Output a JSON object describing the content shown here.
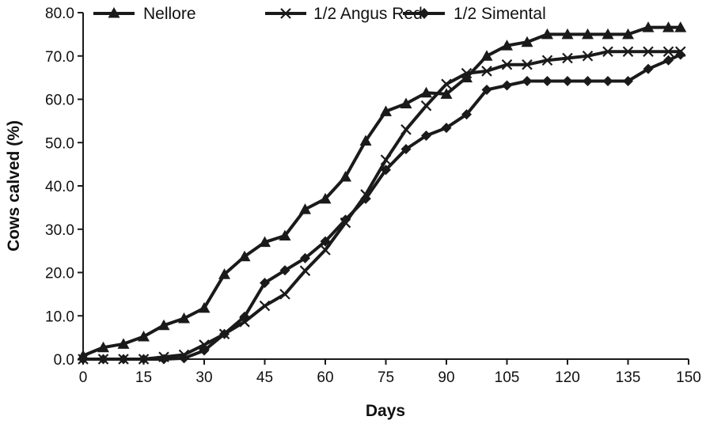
{
  "chart_data": {
    "type": "line",
    "xlabel": "Days",
    "ylabel": "Cows calved (%)",
    "xlim": [
      0,
      150
    ],
    "ylim": [
      0,
      80
    ],
    "x_ticks": [
      "0",
      "15",
      "30",
      "45",
      "60",
      "75",
      "90",
      "105",
      "120",
      "135",
      "150"
    ],
    "y_ticks": [
      "0.0",
      "10.0",
      "20.0",
      "30.0",
      "40.0",
      "50.0",
      "60.0",
      "70.0",
      "80.0"
    ],
    "grid": false,
    "legend_position": "top-left",
    "series": [
      {
        "name": "Nellore",
        "marker": "triangle",
        "color": "#1a1a1a",
        "x": [
          0,
          5,
          10,
          15,
          20,
          25,
          30,
          35,
          40,
          45,
          50,
          55,
          60,
          65,
          70,
          75,
          80,
          85,
          90,
          95,
          100,
          105,
          110,
          115,
          120,
          125,
          130,
          135,
          140,
          145,
          148
        ],
        "y": [
          0.8,
          2.7,
          3.5,
          5.2,
          7.8,
          9.4,
          11.8,
          19.6,
          23.7,
          27.0,
          28.5,
          34.6,
          37.0,
          42.1,
          50.4,
          57.2,
          59.0,
          61.5,
          61.2,
          65.0,
          70.0,
          72.4,
          73.2,
          75.0,
          75.0,
          75.0,
          75.0,
          75.0,
          76.6,
          76.6,
          76.6
        ]
      },
      {
        "name": "1/2 Angus Red",
        "marker": "x",
        "color": "#1a1a1a",
        "x": [
          0,
          5,
          10,
          15,
          20,
          25,
          30,
          35,
          40,
          45,
          50,
          55,
          60,
          65,
          70,
          75,
          80,
          85,
          90,
          95,
          100,
          105,
          110,
          115,
          120,
          125,
          130,
          135,
          140,
          145,
          148
        ],
        "y": [
          0.0,
          0.0,
          0.0,
          0.0,
          0.5,
          1.0,
          3.3,
          5.8,
          8.6,
          12.3,
          15.0,
          20.4,
          25.2,
          31.5,
          38.0,
          46.0,
          53.0,
          58.5,
          63.5,
          66.0,
          66.5,
          68.0,
          68.0,
          69.0,
          69.5,
          70.0,
          71.0,
          71.0,
          71.0,
          71.0,
          71.0
        ]
      },
      {
        "name": "1/2 Simental",
        "marker": "diamond",
        "color": "#1a1a1a",
        "x": [
          0,
          5,
          10,
          15,
          20,
          25,
          30,
          35,
          40,
          45,
          50,
          55,
          60,
          65,
          70,
          75,
          80,
          85,
          90,
          95,
          100,
          105,
          110,
          115,
          120,
          125,
          130,
          135,
          140,
          145,
          148
        ],
        "y": [
          0.0,
          0.0,
          0.0,
          0.0,
          0.0,
          0.2,
          2.0,
          5.8,
          9.8,
          17.6,
          20.5,
          23.3,
          27.2,
          32.2,
          37.0,
          43.7,
          48.5,
          51.6,
          53.4,
          56.5,
          62.2,
          63.2,
          64.2,
          64.2,
          64.2,
          64.2,
          64.2,
          64.2,
          67.0,
          69.0,
          70.3
        ]
      }
    ]
  }
}
